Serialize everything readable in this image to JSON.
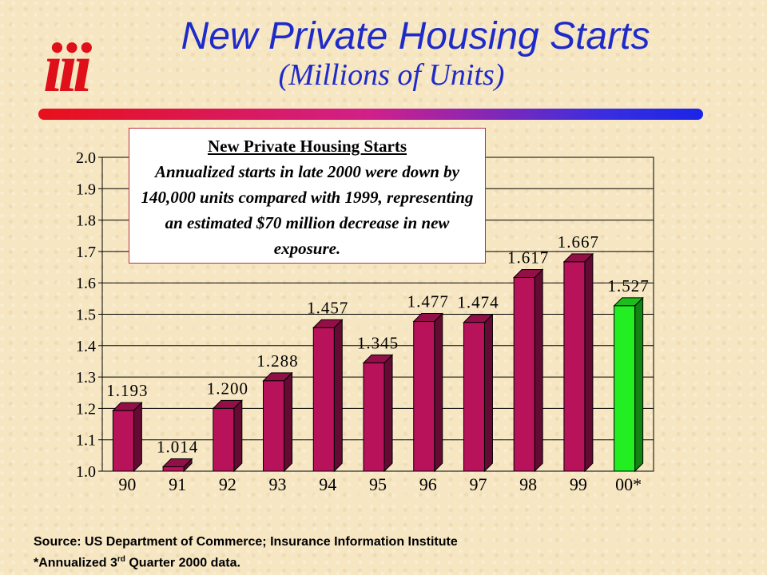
{
  "title": "New Private Housing Starts",
  "subtitle": "(Millions of Units)",
  "note": {
    "heading": "New Private Housing Starts",
    "body": "Annualized starts in late 2000 were down by 140,000 units compared with 1999, representing an estimated $70 million decrease in new exposure."
  },
  "source_line": "Source: US Department of Commerce; Insurance Information Institute",
  "footnote_prefix": "*Annualized 3",
  "footnote_sup": "rd",
  "footnote_suffix": " Quarter 2000 data.",
  "logo_text": "iii",
  "colors": {
    "bar": "#b8135a",
    "bar_highlight": "#22ee22",
    "title": "#1f2bc9",
    "logo": "#e0101a"
  },
  "chart_data": {
    "type": "bar",
    "categories": [
      "90",
      "91",
      "92",
      "93",
      "94",
      "95",
      "96",
      "97",
      "98",
      "99",
      "00*"
    ],
    "values": [
      1.193,
      1.014,
      1.2,
      1.288,
      1.457,
      1.345,
      1.477,
      1.474,
      1.617,
      1.667,
      1.527
    ],
    "value_labels": [
      "1.193",
      "1.014",
      "1.200",
      "1.288",
      "1.457",
      "1.345",
      "1.477",
      "1.474",
      "1.617",
      "1.667",
      "1.527"
    ],
    "highlight_index": 10,
    "yticks": [
      "1.0",
      "1.1",
      "1.2",
      "1.3",
      "1.4",
      "1.5",
      "1.6",
      "1.7",
      "1.8",
      "1.9",
      "2.0"
    ],
    "ylim": [
      1.0,
      2.0
    ],
    "grid": true,
    "style": "3d"
  }
}
